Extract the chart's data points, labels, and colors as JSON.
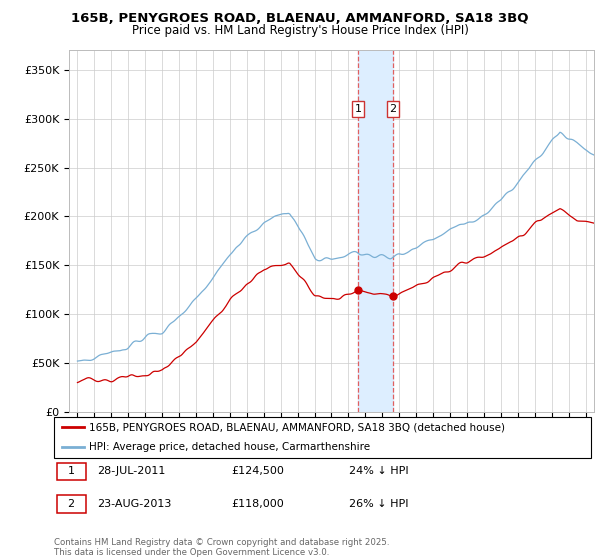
{
  "title": "165B, PENYGROES ROAD, BLAENAU, AMMANFORD, SA18 3BQ",
  "subtitle": "Price paid vs. HM Land Registry's House Price Index (HPI)",
  "ylim": [
    0,
    370000
  ],
  "xlim_start": 1994.5,
  "xlim_end": 2025.5,
  "transaction1_date": 2011.57,
  "transaction1_price": 124500,
  "transaction2_date": 2013.64,
  "transaction2_price": 118000,
  "legend_red_label": "165B, PENYGROES ROAD, BLAENAU, AMMANFORD, SA18 3BQ (detached house)",
  "legend_blue_label": "HPI: Average price, detached house, Carmarthenshire",
  "footer": "Contains HM Land Registry data © Crown copyright and database right 2025.\nThis data is licensed under the Open Government Licence v3.0.",
  "red_color": "#cc0000",
  "blue_color": "#7aafd4",
  "shading_color": "#ddeeff",
  "grid_color": "#cccccc"
}
